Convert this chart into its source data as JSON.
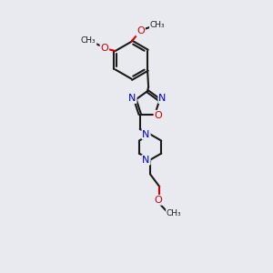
{
  "bg_color": "#e8eaf0",
  "bond_color": "#1a1a1a",
  "N_color": "#0000cc",
  "O_color": "#cc0000",
  "line_width": 1.5,
  "font_size": 8,
  "figsize": [
    3.0,
    3.0
  ],
  "dpi": 100,
  "xlim": [
    2.5,
    9.0
  ],
  "ylim": [
    0.5,
    13.5
  ]
}
